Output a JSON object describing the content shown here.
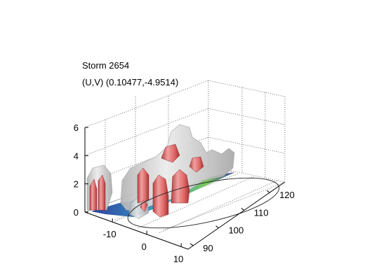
{
  "chart_data": {
    "type": "surface-3d",
    "title": "Storm 2654",
    "subtitle": "(U,V) (0.10477,-4.9514)",
    "x_ticks": [
      "-10",
      "0",
      "10"
    ],
    "y_ticks": [
      "90",
      "100",
      "110",
      "120"
    ],
    "z_ticks": [
      "0",
      "2",
      "4",
      "6"
    ],
    "xlim": [
      -18,
      12
    ],
    "ylim": [
      88,
      126
    ],
    "zlim": [
      0,
      6
    ],
    "grid": true,
    "colors": {
      "isosurface_outer": "#c8c8c8",
      "isosurface_inner": "#e0706e",
      "base_low": "#1a2a8c",
      "base_mid": "#1e9fd0",
      "base_high": "#6fc24a"
    }
  }
}
